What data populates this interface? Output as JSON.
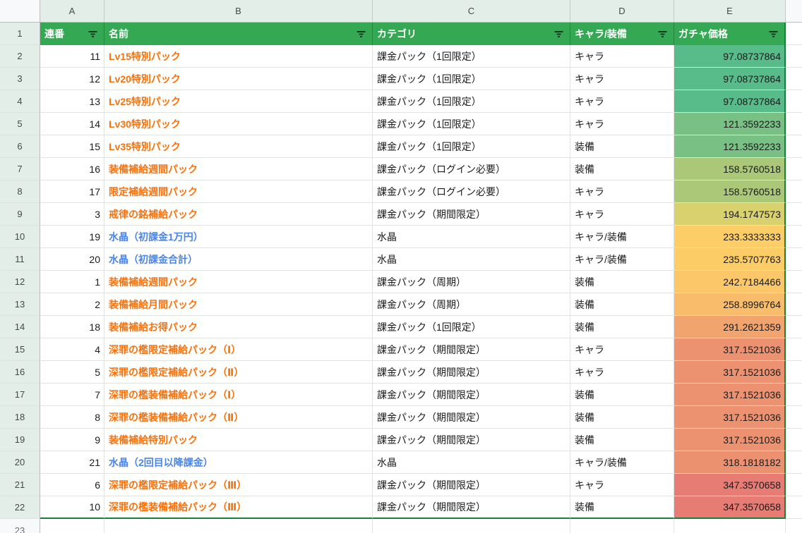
{
  "colors": {
    "header_bg": "#34a853",
    "header_text": "#ffffff",
    "range_border": "#188038",
    "name_orange": "#f8720c",
    "name_blue": "#4a86e8",
    "gutter_bg": "#e4eee8",
    "grid_line": "#e2e2e2",
    "funnel_icon": "#1a3a24",
    "price_scale_min": "#57bb8a",
    "price_scale_mid": "#fdce67",
    "price_scale_max": "#e67c73"
  },
  "column_strip": {
    "letters": [
      "A",
      "B",
      "C",
      "D",
      "E"
    ]
  },
  "header": {
    "row_number": "1",
    "columns": [
      {
        "key": "serial",
        "label": "連番"
      },
      {
        "key": "name",
        "label": "名前"
      },
      {
        "key": "category",
        "label": "カテゴリ"
      },
      {
        "key": "chara_equip",
        "label": "キャラ/装備"
      },
      {
        "key": "price",
        "label": "ガチャ価格"
      }
    ]
  },
  "rows": [
    {
      "row_number": "2",
      "serial": "11",
      "name": "Lv15特別パック",
      "name_color": "orange",
      "category": "課金パック（1回限定）",
      "chara_equip": "キャラ",
      "price": "97.08737864",
      "price_bg": "#57bb8a"
    },
    {
      "row_number": "3",
      "serial": "12",
      "name": "Lv20特別パック",
      "name_color": "orange",
      "category": "課金パック（1回限定）",
      "chara_equip": "キャラ",
      "price": "97.08737864",
      "price_bg": "#57bb8a"
    },
    {
      "row_number": "4",
      "serial": "13",
      "name": "Lv25特別パック",
      "name_color": "orange",
      "category": "課金パック（1回限定）",
      "chara_equip": "キャラ",
      "price": "97.08737864",
      "price_bg": "#57bb8a"
    },
    {
      "row_number": "5",
      "serial": "14",
      "name": "Lv30特別パック",
      "name_color": "orange",
      "category": "課金パック（1回限定）",
      "chara_equip": "キャラ",
      "price": "121.3592233",
      "price_bg": "#78c083"
    },
    {
      "row_number": "6",
      "serial": "15",
      "name": "Lv35特別パック",
      "name_color": "orange",
      "category": "課金パック（1回限定）",
      "chara_equip": "装備",
      "price": "121.3592233",
      "price_bg": "#78c083"
    },
    {
      "row_number": "7",
      "serial": "16",
      "name": "装備補給週間パック",
      "name_color": "orange",
      "category": "課金パック（ログイン必要）",
      "chara_equip": "装備",
      "price": "158.5760518",
      "price_bg": "#aac878"
    },
    {
      "row_number": "8",
      "serial": "17",
      "name": "限定補給週間パック",
      "name_color": "orange",
      "category": "課金パック（ログイン必要）",
      "chara_equip": "キャラ",
      "price": "158.5760518",
      "price_bg": "#aac878"
    },
    {
      "row_number": "9",
      "serial": "3",
      "name": "戒律の銘補給パック",
      "name_color": "orange",
      "category": "課金パック（期間限定）",
      "chara_equip": "キャラ",
      "price": "194.1747573",
      "price_bg": "#d9d06e"
    },
    {
      "row_number": "10",
      "serial": "19",
      "name": "水晶（初課金1万円）",
      "name_color": "blue",
      "category": "水晶",
      "chara_equip": "キャラ/装備",
      "price": "233.3333333",
      "price_bg": "#fdce67"
    },
    {
      "row_number": "11",
      "serial": "20",
      "name": "水晶（初課金合計）",
      "name_color": "blue",
      "category": "水晶",
      "chara_equip": "キャラ/装備",
      "price": "235.5707763",
      "price_bg": "#fccc67"
    },
    {
      "row_number": "12",
      "serial": "1",
      "name": "装備補給週間パック",
      "name_color": "orange",
      "category": "課金パック（周期）",
      "chara_equip": "装備",
      "price": "242.7184466",
      "price_bg": "#fbc768"
    },
    {
      "row_number": "13",
      "serial": "2",
      "name": "装備補給月間パック",
      "name_color": "orange",
      "category": "課金パック（周期）",
      "chara_equip": "装備",
      "price": "258.8996764",
      "price_bg": "#f8bc6a"
    },
    {
      "row_number": "14",
      "serial": "18",
      "name": "装備補給お得パック",
      "name_color": "orange",
      "category": "課金パック（1回限定）",
      "chara_equip": "装備",
      "price": "291.2621359",
      "price_bg": "#f1a46d"
    },
    {
      "row_number": "15",
      "serial": "4",
      "name": "深罪の檻限定補給パック（Ⅰ）",
      "name_color": "orange",
      "category": "課金パック（期間限定）",
      "chara_equip": "キャラ",
      "price": "317.1521036",
      "price_bg": "#ec9270"
    },
    {
      "row_number": "16",
      "serial": "5",
      "name": "深罪の檻限定補給パック（Ⅱ）",
      "name_color": "orange",
      "category": "課金パック（期間限定）",
      "chara_equip": "キャラ",
      "price": "317.1521036",
      "price_bg": "#ec9270"
    },
    {
      "row_number": "17",
      "serial": "7",
      "name": "深罪の檻装備補給パック（Ⅰ）",
      "name_color": "orange",
      "category": "課金パック（期間限定）",
      "chara_equip": "装備",
      "price": "317.1521036",
      "price_bg": "#ec9270"
    },
    {
      "row_number": "18",
      "serial": "8",
      "name": "深罪の檻装備補給パック（Ⅱ）",
      "name_color": "orange",
      "category": "課金パック（期間限定）",
      "chara_equip": "装備",
      "price": "317.1521036",
      "price_bg": "#ec9270"
    },
    {
      "row_number": "19",
      "serial": "9",
      "name": "装備補給特別パック",
      "name_color": "orange",
      "category": "課金パック（期間限定）",
      "chara_equip": "装備",
      "price": "317.1521036",
      "price_bg": "#ec9270"
    },
    {
      "row_number": "20",
      "serial": "21",
      "name": "水晶（2回目以降課金）",
      "name_color": "blue",
      "category": "水晶",
      "chara_equip": "キャラ/装備",
      "price": "318.1818182",
      "price_bg": "#ec9170"
    },
    {
      "row_number": "21",
      "serial": "6",
      "name": "深罪の檻限定補給パック（Ⅲ）",
      "name_color": "orange",
      "category": "課金パック（期間限定）",
      "chara_equip": "キャラ",
      "price": "347.3570658",
      "price_bg": "#e67c73"
    },
    {
      "row_number": "22",
      "serial": "10",
      "name": "深罪の檻装備補給パック（Ⅲ）",
      "name_color": "orange",
      "category": "課金パック（期間限定）",
      "chara_equip": "装備",
      "price": "347.3570658",
      "price_bg": "#e67c73"
    }
  ],
  "bottom_row": {
    "row_number": "23"
  }
}
